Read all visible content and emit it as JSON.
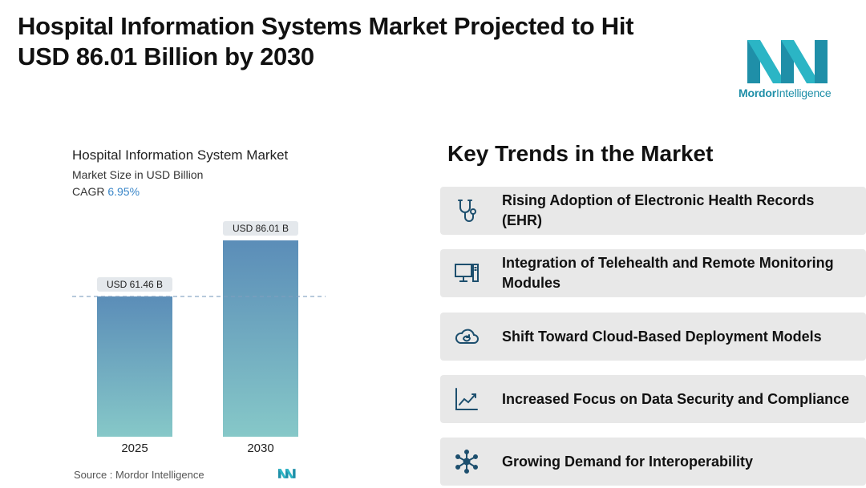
{
  "headline": {
    "line1": "Hospital Information Systems Market Projected to Hit",
    "line2": "USD 86.01 Billion by 2030"
  },
  "logo": {
    "brand_bold": "Mordor",
    "brand_regular": "Intelligence",
    "color": "#1f8fa8"
  },
  "chart_data": {
    "type": "bar",
    "title": "Hospital Information System Market",
    "subtitle": "Market Size in USD Billion",
    "cagr_label": "CAGR",
    "cagr_value": "6.95%",
    "categories": [
      "2025",
      "2030"
    ],
    "values": [
      61.46,
      86.01
    ],
    "data_labels": [
      "USD 61.46 B",
      "USD 86.01 B"
    ],
    "ylim": [
      0,
      86.01
    ],
    "reference_line": 61.46,
    "grid": false,
    "colors": {
      "bar_top": "#5b8db8",
      "bar_bottom": "#86c8c8",
      "ref_line": "#7f9fbf"
    }
  },
  "source": "Source :  Mordor Intelligence",
  "trends": {
    "title": "Key Trends in the Market",
    "items": [
      {
        "label": "Rising Adoption of Electronic Health Records (EHR)",
        "icon": "stethoscope-icon"
      },
      {
        "label": "Integration of Telehealth and Remote Monitoring Modules",
        "icon": "computer-icon"
      },
      {
        "label": "Shift Toward Cloud-Based Deployment Models",
        "icon": "cloud-sync-icon"
      },
      {
        "label": "Increased Focus on Data Security and Compliance",
        "icon": "chart-trend-icon"
      },
      {
        "label": "Growing Demand for Interoperability",
        "icon": "network-icon"
      }
    ]
  }
}
